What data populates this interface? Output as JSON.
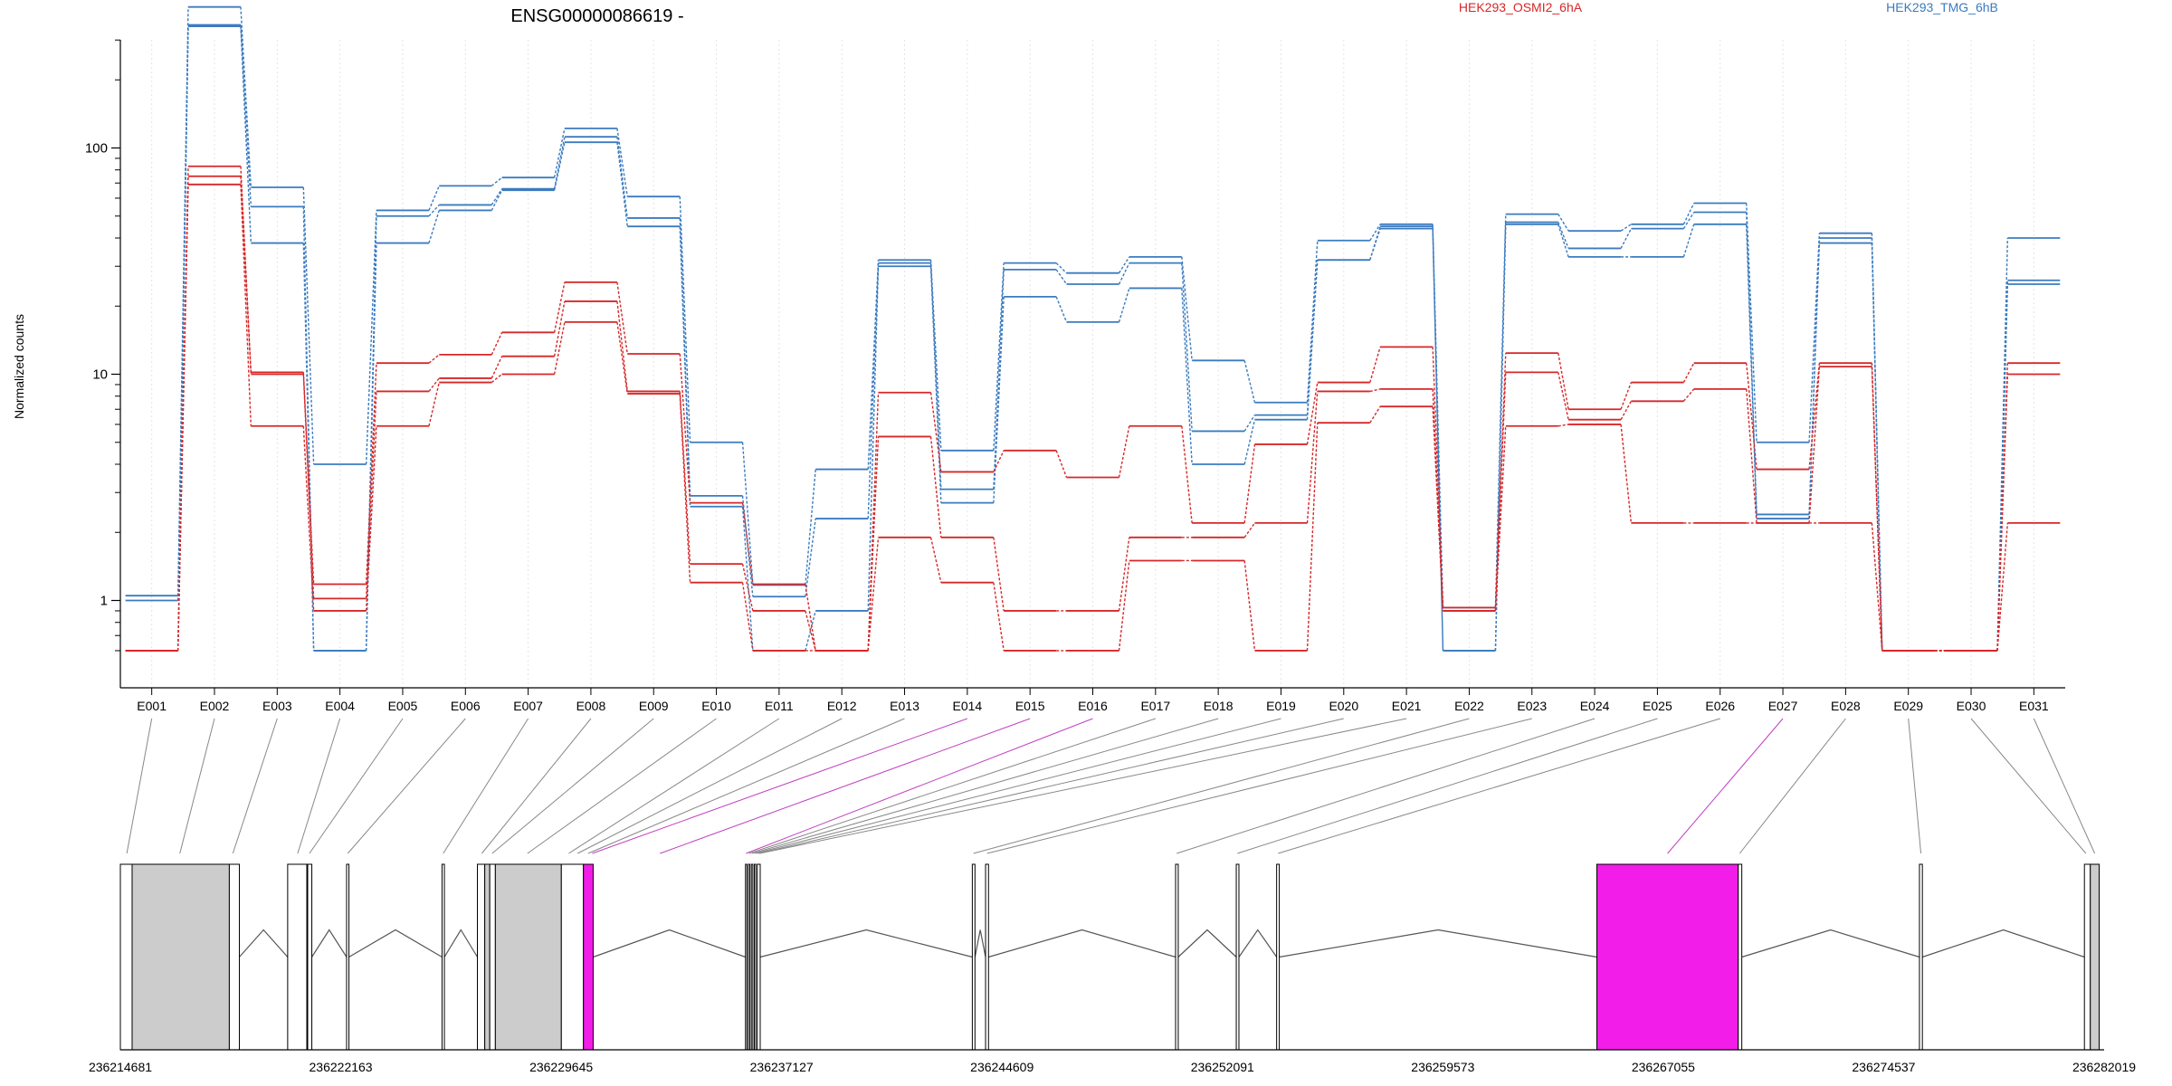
{
  "chart_data": {
    "type": "line",
    "title": "ENSG00000086619 -",
    "ylabel": "Normalized counts",
    "y_scale": "log",
    "y_ticks": [
      "1",
      "10",
      "100"
    ],
    "legend": [
      {
        "name": "HEK293_OSMI2_6hA",
        "color": "#d62728"
      },
      {
        "name": "HEK293_TMG_6hB",
        "color": "#3b7bbf"
      }
    ],
    "categories": [
      "E001",
      "E002",
      "E003",
      "E004",
      "E005",
      "E006",
      "E007",
      "E008",
      "E009",
      "E010",
      "E011",
      "E012",
      "E013",
      "E014",
      "E015",
      "E016",
      "E017",
      "E018",
      "E019",
      "E020",
      "E021",
      "E022",
      "E023",
      "E024",
      "E025",
      "E026",
      "E027",
      "E028",
      "E029",
      "E030",
      "E031"
    ],
    "series": [
      {
        "group": "HEK293_TMG_6hB",
        "color": "#3b7bbf",
        "values": [
          1.05,
          420,
          67,
          4.0,
          53,
          68,
          74,
          122,
          61,
          5.0,
          1.17,
          3.8,
          32,
          4.6,
          31,
          28,
          33,
          11.5,
          7.5,
          39,
          46,
          0.93,
          51,
          43,
          46,
          57,
          5.0,
          42,
          0.6,
          0.6,
          40
        ]
      },
      {
        "group": "HEK293_TMG_6hB",
        "color": "#3b7bbf",
        "values": [
          1.0,
          350,
          55,
          0.6,
          50,
          56,
          66,
          112,
          49,
          2.9,
          1.04,
          2.3,
          31,
          3.1,
          29,
          25,
          31,
          5.6,
          6.6,
          32,
          45,
          0.6,
          47,
          36,
          44,
          52,
          2.4,
          40,
          0.6,
          0.6,
          26
        ]
      },
      {
        "group": "HEK293_TMG_6hB",
        "color": "#3b7bbf",
        "values": [
          0.6,
          345,
          38,
          0.6,
          38,
          53,
          65,
          106,
          45,
          2.6,
          0.6,
          0.9,
          30,
          2.7,
          22,
          17,
          24,
          4.0,
          6.3,
          32,
          44,
          0.6,
          46,
          33,
          33,
          46,
          2.3,
          38,
          0.6,
          0.6,
          25
        ]
      },
      {
        "group": "HEK293_OSMI2_6hA",
        "color": "#d62728",
        "values": [
          0.6,
          83,
          10.2,
          1.18,
          11.2,
          12.2,
          15.3,
          25.5,
          12.3,
          2.7,
          1.18,
          0.6,
          8.3,
          3.7,
          4.6,
          3.5,
          5.9,
          2.2,
          4.9,
          9.2,
          13.2,
          0.93,
          12.4,
          7.0,
          9.2,
          11.2,
          3.8,
          11.2,
          0.6,
          0.6,
          11.2
        ]
      },
      {
        "group": "HEK293_OSMI2_6hA",
        "color": "#d62728",
        "values": [
          0.6,
          75,
          10.0,
          1.02,
          8.4,
          9.6,
          12.0,
          21.0,
          8.4,
          1.45,
          0.9,
          0.6,
          5.3,
          1.9,
          0.9,
          0.9,
          1.9,
          1.9,
          2.2,
          8.4,
          8.6,
          0.9,
          10.2,
          6.3,
          7.6,
          8.6,
          2.2,
          10.8,
          0.6,
          0.6,
          10.0
        ]
      },
      {
        "group": "HEK293_OSMI2_6hA",
        "color": "#d62728",
        "values": [
          0.6,
          69,
          5.9,
          0.9,
          5.9,
          9.2,
          10.0,
          17.0,
          8.2,
          1.2,
          0.6,
          0.6,
          1.9,
          1.2,
          0.6,
          0.6,
          1.5,
          1.5,
          0.6,
          6.1,
          7.2,
          0.9,
          5.9,
          6.0,
          2.2,
          2.2,
          2.2,
          2.2,
          0.6,
          0.6,
          2.2
        ]
      }
    ],
    "genomic_axis": {
      "start": 236214681,
      "end": 236282019,
      "tick_labels": [
        "236214681",
        "236222163",
        "236229645",
        "236237127",
        "236244609",
        "236252091",
        "236259573",
        "236267055",
        "236274537",
        "236282019"
      ]
    },
    "exon_blocks": [
      {
        "start": 236214681,
        "end": 236215080,
        "fill": "#ffffff"
      },
      {
        "start": 236215080,
        "end": 236218380,
        "fill": "#cccccc"
      },
      {
        "start": 236218380,
        "end": 236218720,
        "fill": "#ffffff"
      },
      {
        "start": 236220360,
        "end": 236221010,
        "fill": "#ffffff"
      },
      {
        "start": 236221040,
        "end": 236221180,
        "fill": "#ffffff"
      },
      {
        "start": 236222360,
        "end": 236222440,
        "fill": "#ffffff"
      },
      {
        "start": 236225600,
        "end": 236225680,
        "fill": "#ffffff"
      },
      {
        "start": 236226800,
        "end": 236227050,
        "fill": "#ffffff"
      },
      {
        "start": 236227050,
        "end": 236227220,
        "fill": "#cccccc"
      },
      {
        "start": 236227220,
        "end": 236227410,
        "fill": "#ffffff"
      },
      {
        "start": 236227410,
        "end": 236229650,
        "fill": "#cccccc"
      },
      {
        "start": 236229650,
        "end": 236230400,
        "fill": "#ffffff"
      },
      {
        "start": 236230400,
        "end": 236230730,
        "fill": "#f21de8"
      },
      {
        "start": 236235900,
        "end": 236235950,
        "fill": "#ffffff"
      },
      {
        "start": 236236000,
        "end": 236236050,
        "fill": "#ffffff"
      },
      {
        "start": 236236100,
        "end": 236236150,
        "fill": "#ffffff"
      },
      {
        "start": 236236200,
        "end": 236236250,
        "fill": "#ffffff"
      },
      {
        "start": 236236300,
        "end": 236236400,
        "fill": "#ffffff"
      },
      {
        "start": 236243600,
        "end": 236243690,
        "fill": "#ffffff"
      },
      {
        "start": 236244050,
        "end": 236244150,
        "fill": "#ffffff"
      },
      {
        "start": 236250500,
        "end": 236250590,
        "fill": "#ffffff"
      },
      {
        "start": 236252560,
        "end": 236252650,
        "fill": "#ffffff"
      },
      {
        "start": 236253930,
        "end": 236254020,
        "fill": "#ffffff"
      },
      {
        "start": 236264800,
        "end": 236269600,
        "fill": "#f21de8"
      },
      {
        "start": 236269600,
        "end": 236269720,
        "fill": "#ffffff"
      },
      {
        "start": 236275750,
        "end": 236275850,
        "fill": "#ffffff"
      },
      {
        "start": 236281350,
        "end": 236281550,
        "fill": "#ffffff"
      },
      {
        "start": 236281550,
        "end": 236281850,
        "fill": "#cccccc"
      }
    ],
    "exon_links": [
      {
        "exon": "E001",
        "genomic": 236214900,
        "color": "#888888"
      },
      {
        "exon": "E002",
        "genomic": 236216700,
        "color": "#888888"
      },
      {
        "exon": "E003",
        "genomic": 236218500,
        "color": "#888888"
      },
      {
        "exon": "E004",
        "genomic": 236220700,
        "color": "#888888"
      },
      {
        "exon": "E005",
        "genomic": 236221100,
        "color": "#888888"
      },
      {
        "exon": "E006",
        "genomic": 236222400,
        "color": "#888888"
      },
      {
        "exon": "E007",
        "genomic": 236225640,
        "color": "#888888"
      },
      {
        "exon": "E008",
        "genomic": 236226950,
        "color": "#888888"
      },
      {
        "exon": "E009",
        "genomic": 236227300,
        "color": "#888888"
      },
      {
        "exon": "E010",
        "genomic": 236228500,
        "color": "#888888"
      },
      {
        "exon": "E011",
        "genomic": 236229900,
        "color": "#888888"
      },
      {
        "exon": "E012",
        "genomic": 236230200,
        "color": "#888888"
      },
      {
        "exon": "E013",
        "genomic": 236230560,
        "color": "#888888"
      },
      {
        "exon": "E014",
        "genomic": 236230700,
        "color": "#c040c0"
      },
      {
        "exon": "E015",
        "genomic": 236233000,
        "color": "#c040c0"
      },
      {
        "exon": "E016",
        "genomic": 236235920,
        "color": "#c040c0"
      },
      {
        "exon": "E017",
        "genomic": 236236020,
        "color": "#888888"
      },
      {
        "exon": "E018",
        "genomic": 236236120,
        "color": "#888888"
      },
      {
        "exon": "E019",
        "genomic": 236236220,
        "color": "#888888"
      },
      {
        "exon": "E020",
        "genomic": 236236320,
        "color": "#888888"
      },
      {
        "exon": "E021",
        "genomic": 236236380,
        "color": "#888888"
      },
      {
        "exon": "E022",
        "genomic": 236243640,
        "color": "#888888"
      },
      {
        "exon": "E023",
        "genomic": 236244100,
        "color": "#888888"
      },
      {
        "exon": "E024",
        "genomic": 236250540,
        "color": "#888888"
      },
      {
        "exon": "E025",
        "genomic": 236252600,
        "color": "#888888"
      },
      {
        "exon": "E026",
        "genomic": 236253980,
        "color": "#888888"
      },
      {
        "exon": "E027",
        "genomic": 236267200,
        "color": "#c040c0"
      },
      {
        "exon": "E028",
        "genomic": 236269650,
        "color": "#888888"
      },
      {
        "exon": "E029",
        "genomic": 236275800,
        "color": "#888888"
      },
      {
        "exon": "E030",
        "genomic": 236281400,
        "color": "#888888"
      },
      {
        "exon": "E031",
        "genomic": 236281700,
        "color": "#888888"
      }
    ]
  }
}
